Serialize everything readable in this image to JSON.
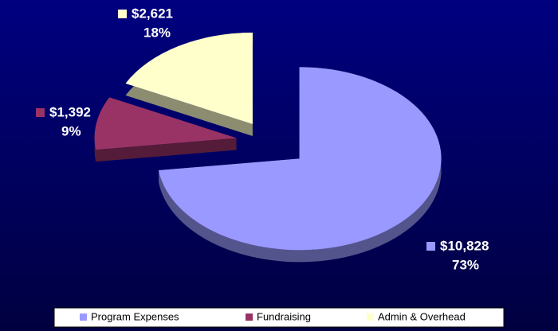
{
  "chart_data": {
    "type": "pie",
    "categories": [
      "Program Expenses",
      "Fundraising",
      "Admin & Overhead"
    ],
    "values": [
      10828,
      1392,
      2621
    ],
    "value_labels": [
      "$10,828",
      "$1,392",
      "$2,621"
    ],
    "percentages": [
      73,
      9,
      18
    ],
    "percentage_labels": [
      "73%",
      "9%",
      "18%"
    ],
    "colors": [
      "#9999ff",
      "#993366",
      "#ffffcc"
    ],
    "legend": "bottom"
  }
}
